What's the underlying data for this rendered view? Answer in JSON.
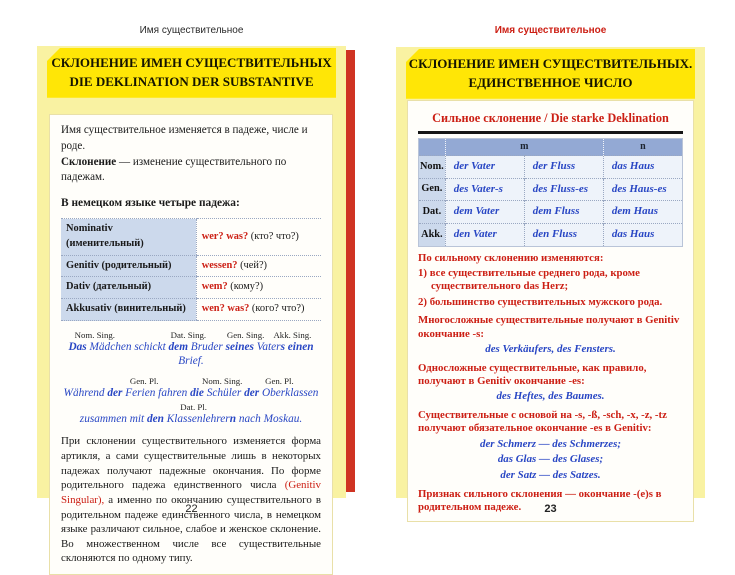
{
  "running_head_left": "Имя существительное",
  "running_head_right": "Имя существительное",
  "page_number_left": "22",
  "page_number_right": "23",
  "colors": {
    "accent_red": "#cc1f14",
    "example_blue": "#2846c4",
    "title_yellow": "#ffe606",
    "page_yellow": "#f9f2a2",
    "table_header_blue": "#93a9d4",
    "table_label_blue": "#ccd9ec",
    "spine_red_stripe": "#cf3322"
  },
  "left_page": {
    "title_line1": "СКЛОНЕНИЕ ИМЕН СУЩЕСТВИТЕЛЬНЫХ",
    "title_line2": "DIE DEKLINATION DER SUBSTANTIVE",
    "intro_line1": [
      {
        "t": "Имя существительное изменяется в падеже, числе и роде."
      }
    ],
    "intro_line2": [
      {
        "t": "Склонение",
        "c": "b"
      },
      {
        "t": " — изменение существительного по падежам."
      }
    ],
    "cases_heading": "В немецком языке четыре падежа:",
    "cases_table": {
      "rows": [
        {
          "label": "Nominativ (именительный)",
          "answer": [
            {
              "t": "wer? was?",
              "c": "r"
            },
            {
              "t": " (кто? что?)"
            }
          ]
        },
        {
          "label": "Genitiv (родительный)",
          "answer": [
            {
              "t": "wessen?",
              "c": "r"
            },
            {
              "t": " (чей?)"
            }
          ]
        },
        {
          "label": "Dativ (дательный)",
          "answer": [
            {
              "t": "wem?",
              "c": "r"
            },
            {
              "t": " (кому?)"
            }
          ]
        },
        {
          "label": "Akkusativ (винительный)",
          "answer": [
            {
              "t": "wen? was?",
              "c": "r"
            },
            {
              "t": " (кого? что?)"
            }
          ]
        }
      ]
    },
    "example1": {
      "labels": [
        "Nom. Sing.",
        "Dat. Sing.",
        "Gen. Sing.",
        "Akk. Sing."
      ],
      "sentence": [
        {
          "t": "Das",
          "c": "b"
        },
        {
          "t": " Mädchen schickt "
        },
        {
          "t": "dem",
          "c": "b"
        },
        {
          "t": " Bruder "
        },
        {
          "t": "seines",
          "c": "b"
        },
        {
          "t": " Vater"
        },
        {
          "t": "s",
          "c": "b"
        },
        {
          "t": " "
        },
        {
          "t": "einen",
          "c": "b"
        },
        {
          "t": " Brief."
        }
      ]
    },
    "example2": {
      "labels1": [
        "Gen. Pl.",
        "Nom. Sing.",
        "Gen. Pl."
      ],
      "line1": [
        {
          "t": "Während "
        },
        {
          "t": "der",
          "c": "b"
        },
        {
          "t": " Ferien fahren "
        },
        {
          "t": "die",
          "c": "b"
        },
        {
          "t": " Schüler "
        },
        {
          "t": "der",
          "c": "b"
        },
        {
          "t": " Oberklassen"
        }
      ],
      "label2": "Dat. Pl.",
      "line2": [
        {
          "t": "zusammen mit "
        },
        {
          "t": "den",
          "c": "b"
        },
        {
          "t": " Klassenlehrer"
        },
        {
          "t": "n",
          "c": "b"
        },
        {
          "t": " nach Moskau."
        }
      ]
    },
    "closing": [
      {
        "t": "При склонении существительного изменяется форма артикля, а сами существительные лишь в некоторых падежах получают падежные окончания. По форме родительного падежа единственного числа "
      },
      {
        "t": "(Genitiv Singular),",
        "c": "rn"
      },
      {
        "t": " а именно по окончанию существительного в родительном падеже единственного числа, в немецком языке различают сильное, слабое и женское склонение. Во множественном числе все существительные склоняются по одному типу."
      }
    ]
  },
  "right_page": {
    "title_line1": "СКЛОНЕНИЕ ИМЕН СУЩЕСТВИТЕЛЬНЫХ.",
    "title_line2": "ЕДИНСТВЕННОЕ ЧИСЛО",
    "table": {
      "heading": "Сильное склонение / Die starke Deklination",
      "header_m": "m",
      "header_n": "n",
      "rows": [
        {
          "label": "Nom.",
          "cells": [
            [
              {
                "t": "der Vater"
              }
            ],
            [
              {
                "t": "der Fluss"
              }
            ],
            [
              {
                "t": "das Haus"
              }
            ]
          ]
        },
        {
          "label": "Gen.",
          "cells": [
            [
              {
                "t": "des Vater-"
              },
              {
                "t": "s",
                "c": "b"
              }
            ],
            [
              {
                "t": "des Fluss-"
              },
              {
                "t": "es",
                "c": "b"
              }
            ],
            [
              {
                "t": "des Haus-"
              },
              {
                "t": "es",
                "c": "b"
              }
            ]
          ]
        },
        {
          "label": "Dat.",
          "cells": [
            [
              {
                "t": "dem Vater"
              }
            ],
            [
              {
                "t": "dem Fluss"
              }
            ],
            [
              {
                "t": "dem Haus"
              }
            ]
          ]
        },
        {
          "label": "Akk.",
          "cells": [
            [
              {
                "t": "den Vater"
              }
            ],
            [
              {
                "t": "den Fluss"
              }
            ],
            [
              {
                "t": "das Haus"
              }
            ]
          ]
        }
      ]
    },
    "p1": [
      {
        "t": "По сильному склонению",
        "c": "b"
      },
      {
        "t": " изменяются:"
      }
    ],
    "item1": [
      {
        "t": "1) все существительные среднего рода, кроме существительного "
      },
      {
        "t": "das Herz",
        "c": "r"
      },
      {
        "t": ";"
      }
    ],
    "item2": [
      {
        "t": "2) большинство существительных мужского рода."
      }
    ],
    "p2": [
      {
        "t": "Многосложные существительные",
        "c": "b"
      },
      {
        "t": " получают в "
      },
      {
        "t": "Genitiv",
        "c": "r"
      },
      {
        "t": " окончание "
      },
      {
        "t": "-s",
        "c": "r"
      },
      {
        "t": ":"
      }
    ],
    "ex2": [
      {
        "t": "des Verkäufer"
      },
      {
        "t": "s",
        "c": "b"
      },
      {
        "t": ", des Fenster"
      },
      {
        "t": "s",
        "c": "b"
      },
      {
        "t": "."
      }
    ],
    "p3": [
      {
        "t": "Односложные существительные",
        "c": "b"
      },
      {
        "t": ", как правило, получают в "
      },
      {
        "t": "Genitiv",
        "c": "r"
      },
      {
        "t": " окончание "
      },
      {
        "t": "-es",
        "c": "r"
      },
      {
        "t": ":"
      }
    ],
    "ex3": [
      {
        "t": "des Heft"
      },
      {
        "t": "es",
        "c": "b"
      },
      {
        "t": ", des Baum"
      },
      {
        "t": "es",
        "c": "b"
      },
      {
        "t": "."
      }
    ],
    "p4": [
      {
        "t": "Существительные с основой на",
        "c": "b"
      },
      {
        "t": " "
      },
      {
        "t": "-s, -ß, -sch, -x, -z, -tz",
        "c": "r"
      },
      {
        "t": " получают обязательное окончание "
      },
      {
        "t": "-es",
        "c": "r"
      },
      {
        "t": " в "
      },
      {
        "t": "Genitiv",
        "c": "r"
      },
      {
        "t": ":"
      }
    ],
    "ex4": [
      [
        {
          "t": "der Schmerz — des Schmerz"
        },
        {
          "t": "es",
          "c": "b"
        },
        {
          "t": ";"
        }
      ],
      [
        {
          "t": "das Glas — des Glas"
        },
        {
          "t": "es",
          "c": "b"
        },
        {
          "t": ";"
        }
      ],
      [
        {
          "t": "der Satz — des Satz"
        },
        {
          "t": "es",
          "c": "b"
        },
        {
          "t": "."
        }
      ]
    ],
    "p5": [
      {
        "t": "Признак сильного склонения",
        "c": "b"
      },
      {
        "t": " — окончание "
      },
      {
        "t": "-(e)s",
        "c": "r"
      },
      {
        "t": " в родительном падеже."
      }
    ]
  }
}
